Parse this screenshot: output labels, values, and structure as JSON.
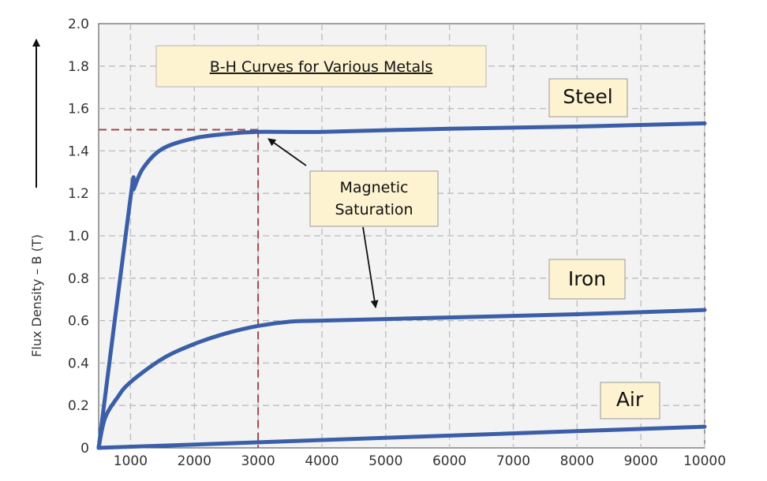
{
  "chart_data": {
    "type": "line",
    "title": "B-H Curves for Various Metals",
    "xlabel": "",
    "ylabel": "Flux Density – B (T)",
    "xlim": [
      500,
      10000
    ],
    "ylim": [
      0,
      2.0
    ],
    "x_ticks": [
      "1000",
      "2000",
      "3000",
      "4000",
      "5000",
      "6000",
      "7000",
      "8000",
      "9000",
      "10000"
    ],
    "y_ticks": [
      "0",
      "0.2",
      "0.4",
      "0.6",
      "0.8",
      "1.0",
      "1.2",
      "1.4",
      "1.6",
      "1.8",
      "2.0"
    ],
    "grid": true,
    "series": [
      {
        "name": "Steel",
        "x": [
          500,
          1000,
          1050,
          1200,
          1500,
          2000,
          2500,
          3000,
          4000,
          6000,
          8000,
          10000
        ],
        "y": [
          0,
          1.18,
          1.22,
          1.32,
          1.41,
          1.46,
          1.48,
          1.49,
          1.49,
          1.505,
          1.515,
          1.53
        ]
      },
      {
        "name": "Iron",
        "x": [
          500,
          600,
          800,
          1000,
          1500,
          2000,
          2500,
          3000,
          3500,
          4000,
          6000,
          8000,
          10000
        ],
        "y": [
          0,
          0.14,
          0.24,
          0.31,
          0.42,
          0.49,
          0.54,
          0.575,
          0.595,
          0.6,
          0.615,
          0.63,
          0.65
        ]
      },
      {
        "name": "Air",
        "x": [
          500,
          10000
        ],
        "y": [
          0,
          0.1
        ]
      }
    ],
    "saturation_reference": {
      "x": 3000,
      "y": 1.5
    },
    "annotations": [
      {
        "text_lines": [
          "Magnetic",
          "Saturation"
        ],
        "points_to": [
          {
            "x": 3050,
            "y": 1.49
          },
          {
            "x": 4300,
            "y": 0.65
          }
        ]
      }
    ],
    "colors": {
      "curve": "#3a5ea8",
      "reference": "#a24a4a",
      "plot_bg": "#f3f3f3",
      "label_box": "#fdf3d0"
    }
  }
}
